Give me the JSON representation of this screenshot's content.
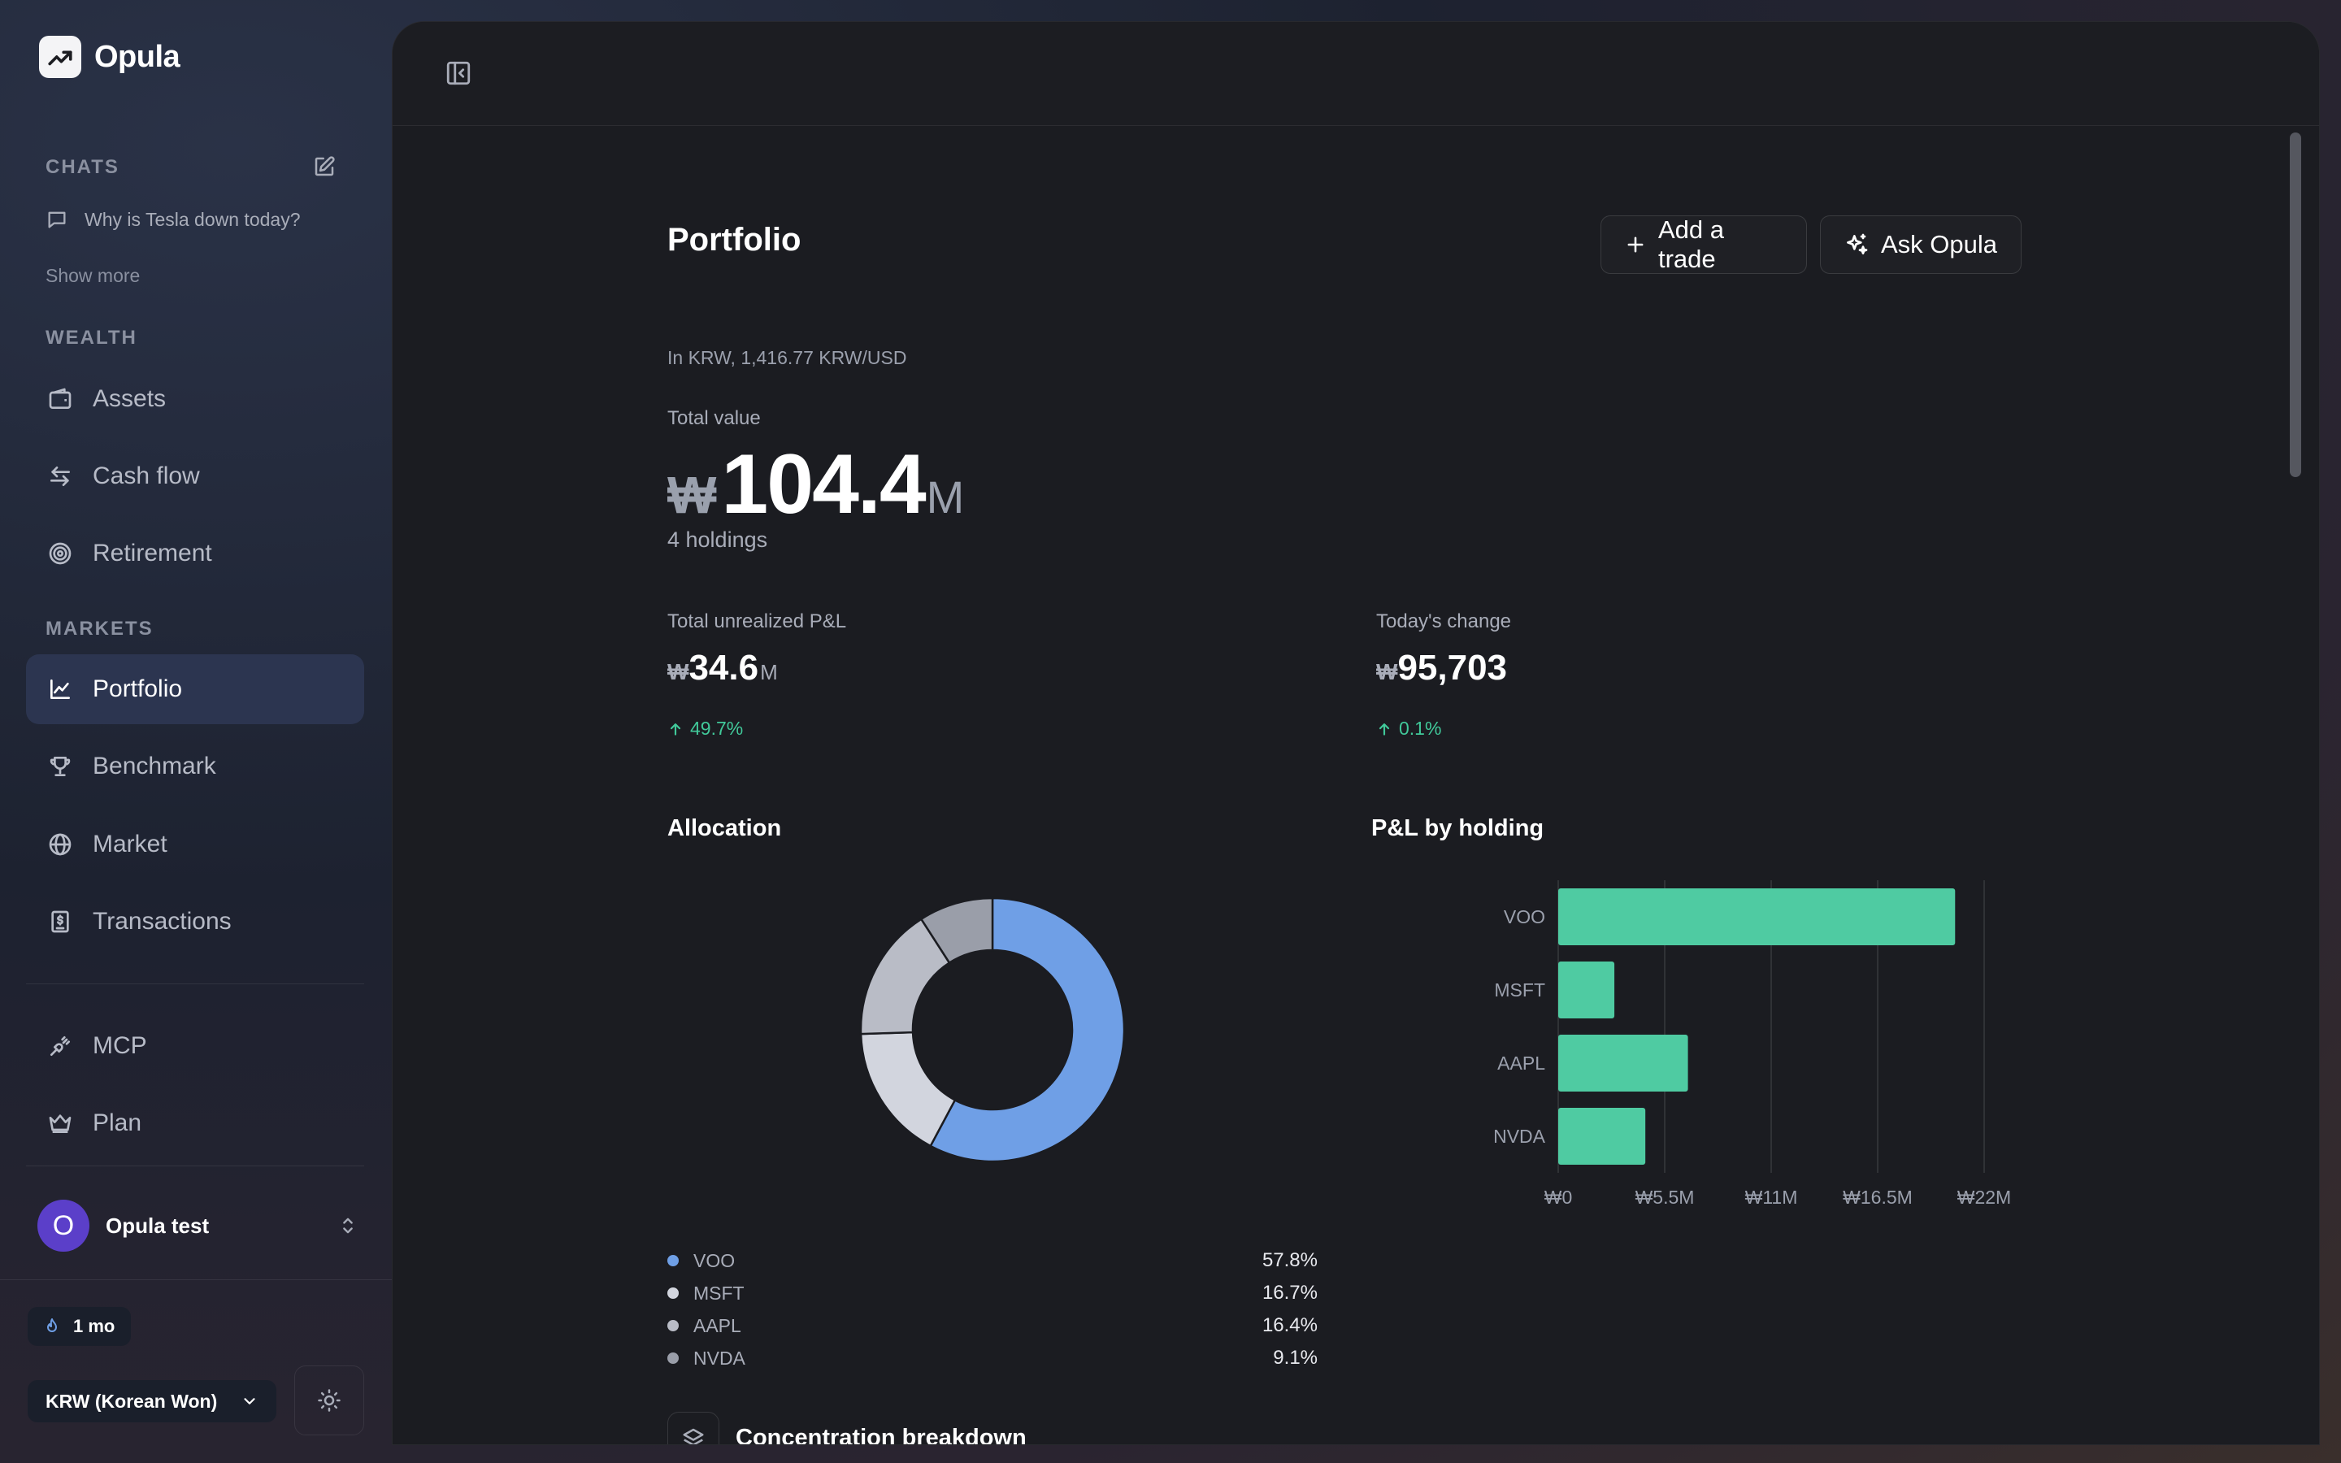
{
  "app": {
    "name": "Opula"
  },
  "sidebar": {
    "chats_label": "CHATS",
    "chats": [
      {
        "title": "Why is Tesla down today?"
      }
    ],
    "show_more": "Show more",
    "wealth_label": "WEALTH",
    "wealth_items": [
      {
        "label": "Assets",
        "icon": "wallet-icon"
      },
      {
        "label": "Cash flow",
        "icon": "arrows-exchange-icon"
      },
      {
        "label": "Retirement",
        "icon": "target-icon"
      }
    ],
    "markets_label": "MARKETS",
    "markets_items": [
      {
        "label": "Portfolio",
        "icon": "chart-line-icon",
        "active": true
      },
      {
        "label": "Benchmark",
        "icon": "trophy-icon"
      },
      {
        "label": "Market",
        "icon": "globe-icon"
      },
      {
        "label": "Transactions",
        "icon": "receipt-dollar-icon"
      }
    ],
    "extra_items": [
      {
        "label": "MCP",
        "icon": "plug-icon"
      },
      {
        "label": "Plan",
        "icon": "crown-icon"
      }
    ],
    "user": {
      "initial": "O",
      "name": "Opula test"
    },
    "streak": "1 mo",
    "currency": "KRW (Korean Won)"
  },
  "portfolio": {
    "title": "Portfolio",
    "add_trade": "Add a trade",
    "ask": "Ask Opula",
    "fx_note": "In KRW, 1,416.77 KRW/USD",
    "total_value": {
      "label": "Total value",
      "symbol": "₩",
      "number": "104.4",
      "unit": "M"
    },
    "holdings_count": "4 holdings",
    "unrealized": {
      "label": "Total unrealized P&L",
      "symbol": "₩",
      "number": "34.6",
      "unit": "M",
      "change": "49.7%"
    },
    "today": {
      "label": "Today's change",
      "symbol": "₩",
      "number": "95,703",
      "unit": "",
      "change": "0.1%"
    },
    "allocation_title": "Allocation",
    "pnl_title": "P&L by holding",
    "concentration_title": "Concentration breakdown"
  },
  "colors": {
    "accent": "#41c99a",
    "bar": "#4fcba2",
    "voo": "#6f9fe6",
    "msft": "#d2d5de",
    "aapl": "#b9bcc6",
    "nvda": "#9a9ea9"
  },
  "chart_data": [
    {
      "type": "pie",
      "title": "Allocation",
      "categories": [
        "VOO",
        "MSFT",
        "AAPL",
        "NVDA"
      ],
      "values": [
        57.8,
        16.7,
        16.4,
        9.1
      ],
      "labels": [
        "57.8%",
        "16.7%",
        "16.4%",
        "9.1%"
      ],
      "colors": [
        "#6f9fe6",
        "#d2d5de",
        "#b9bcc6",
        "#9a9ea9"
      ],
      "legend": "bottom"
    },
    {
      "type": "bar",
      "orientation": "horizontal",
      "title": "P&L by holding",
      "categories": [
        "VOO",
        "MSFT",
        "AAPL",
        "NVDA"
      ],
      "values": [
        20.5,
        2.9,
        6.7,
        4.5
      ],
      "xlim": [
        0,
        22
      ],
      "ticks": [
        0,
        5.5,
        11,
        16.5,
        22
      ],
      "tick_labels": [
        "₩0",
        "₩5.5M",
        "₩11M",
        "₩16.5M",
        "₩22M"
      ],
      "grid": true
    }
  ]
}
